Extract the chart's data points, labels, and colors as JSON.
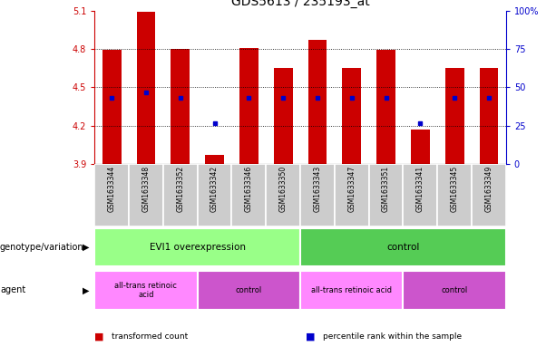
{
  "title": "GDS5613 / 235193_at",
  "samples": [
    "GSM1633344",
    "GSM1633348",
    "GSM1633352",
    "GSM1633342",
    "GSM1633346",
    "GSM1633350",
    "GSM1633343",
    "GSM1633347",
    "GSM1633351",
    "GSM1633341",
    "GSM1633345",
    "GSM1633349"
  ],
  "bar_tops": [
    4.79,
    5.09,
    4.8,
    3.97,
    4.81,
    4.65,
    4.87,
    4.65,
    4.79,
    4.17,
    4.65,
    4.65
  ],
  "bar_base": 3.9,
  "blue_dots": [
    4.42,
    4.46,
    4.42,
    4.22,
    4.42,
    4.42,
    4.42,
    4.42,
    4.42,
    4.22,
    4.42,
    4.42
  ],
  "ylim": [
    3.9,
    5.1
  ],
  "yticks_left": [
    3.9,
    4.2,
    4.5,
    4.8,
    5.1
  ],
  "yticks_right": [
    0,
    25,
    50,
    75,
    100
  ],
  "bar_color": "#cc0000",
  "dot_color": "#0000cc",
  "genotype_groups": [
    {
      "label": "EVI1 overexpression",
      "start": 0,
      "end": 6,
      "color": "#99ff88"
    },
    {
      "label": "control",
      "start": 6,
      "end": 12,
      "color": "#55cc55"
    }
  ],
  "agent_groups": [
    {
      "label": "all-trans retinoic\nacid",
      "start": 0,
      "end": 3,
      "color": "#ff88ff"
    },
    {
      "label": "control",
      "start": 3,
      "end": 6,
      "color": "#cc55cc"
    },
    {
      "label": "all-trans retinoic acid",
      "start": 6,
      "end": 9,
      "color": "#ff88ff"
    },
    {
      "label": "control",
      "start": 9,
      "end": 12,
      "color": "#cc55cc"
    }
  ],
  "legend_items": [
    {
      "label": "transformed count",
      "color": "#cc0000"
    },
    {
      "label": "percentile rank within the sample",
      "color": "#0000cc"
    }
  ],
  "ylabel_left_color": "#cc0000",
  "ylabel_right_color": "#0000cc",
  "label_row_color": "#cccccc",
  "geno_label": "genotype/variation",
  "agent_label": "agent"
}
